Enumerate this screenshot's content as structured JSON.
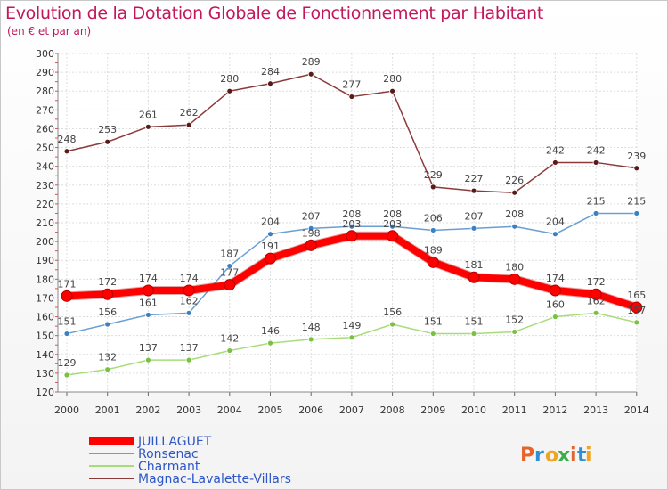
{
  "header": {
    "title": "Evolution de la Dotation Globale de Fonctionnement par Habitant",
    "subtitle": "(en € et par an)"
  },
  "brand": {
    "logo_text": "Proxiti",
    "logo_colors": [
      "#e8632b",
      "#2e8fd6",
      "#f0a51e",
      "#3cae49",
      "#e8632b",
      "#2e8fd6",
      "#f0a51e"
    ]
  },
  "chart_data": {
    "type": "line",
    "title": "Evolution de la Dotation Globale de Fonctionnement par Habitant",
    "subtitle": "(en € et par an)",
    "xlabel": "",
    "ylabel": "",
    "x": [
      "2000",
      "2001",
      "2002",
      "2003",
      "2004",
      "2005",
      "2006",
      "2007",
      "2008",
      "2009",
      "2010",
      "2011",
      "2012",
      "2013",
      "2014"
    ],
    "ylim": [
      120,
      300
    ],
    "yticks": [
      120,
      130,
      140,
      150,
      160,
      170,
      180,
      190,
      200,
      210,
      220,
      230,
      240,
      250,
      260,
      270,
      280,
      290,
      300
    ],
    "grid": true,
    "legend_position": "bottom-left",
    "series": [
      {
        "name": "JUILLAGUET",
        "color": "#ff0000",
        "marker_color": "#ff0000",
        "width": 8,
        "values": [
          171,
          172,
          174,
          174,
          177,
          191,
          198,
          203,
          203,
          189,
          181,
          180,
          174,
          172,
          165
        ]
      },
      {
        "name": "Ronsenac",
        "color": "#6a9fd4",
        "marker_color": "#3b7fc4",
        "width": 1.5,
        "values": [
          151,
          156,
          161,
          162,
          187,
          204,
          207,
          208,
          208,
          206,
          207,
          208,
          204,
          215,
          215
        ]
      },
      {
        "name": "Charmant",
        "color": "#a8dc7a",
        "marker_color": "#79c143",
        "width": 1.5,
        "values": [
          129,
          132,
          137,
          137,
          142,
          146,
          148,
          149,
          156,
          151,
          151,
          152,
          160,
          162,
          157
        ]
      },
      {
        "name": "Magnac-Lavalette-Villars",
        "color": "#8b3a3a",
        "marker_color": "#5a1a1a",
        "width": 1.5,
        "values": [
          248,
          253,
          261,
          262,
          280,
          284,
          289,
          277,
          280,
          229,
          227,
          226,
          242,
          242,
          239
        ]
      }
    ]
  }
}
